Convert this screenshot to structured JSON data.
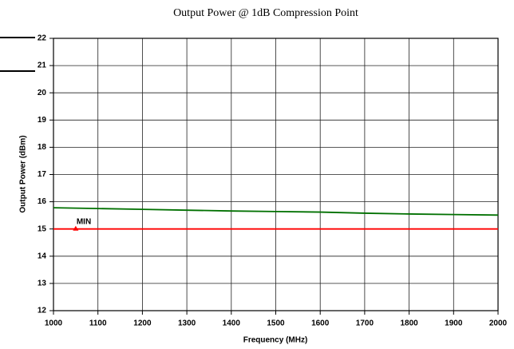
{
  "chart_data": {
    "type": "line",
    "title": "Output Power @ 1dB Compression Point",
    "xlabel": "Frequency (MHz)",
    "ylabel": "Output Power (dBm)",
    "x": [
      1000,
      1100,
      1200,
      1300,
      1400,
      1500,
      1600,
      1700,
      1800,
      1900,
      2000
    ],
    "series": [
      {
        "color": "#007000",
        "values": [
          15.78,
          15.75,
          15.72,
          15.69,
          15.66,
          15.64,
          15.62,
          15.58,
          15.55,
          15.53,
          15.51
        ]
      },
      {
        "color": "#ff0000",
        "values": [
          15,
          15,
          15,
          15,
          15,
          15,
          15,
          15,
          15,
          15,
          15
        ]
      }
    ],
    "annotations": [
      {
        "text": "MIN",
        "x": 1050,
        "y": 15
      }
    ],
    "xlim": [
      1000,
      2000
    ],
    "xticks": [
      1000,
      1100,
      1200,
      1300,
      1400,
      1500,
      1600,
      1700,
      1800,
      1900,
      2000
    ],
    "ylim": [
      12,
      22
    ],
    "yticks": [
      12,
      13,
      14,
      15,
      16,
      17,
      18,
      19,
      20,
      21,
      22
    ],
    "grid": true
  }
}
